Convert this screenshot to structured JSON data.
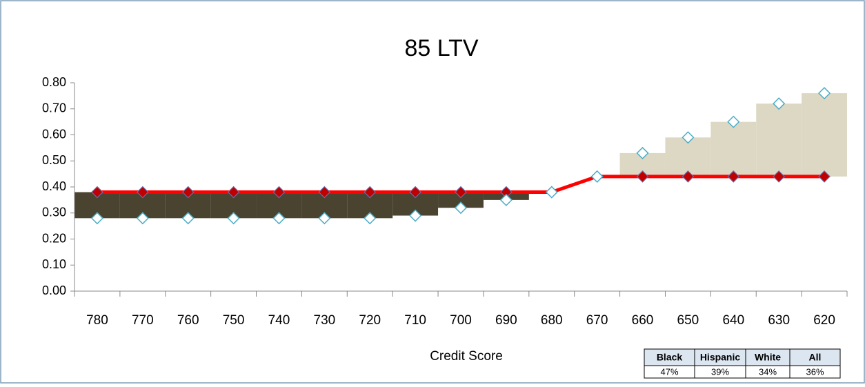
{
  "chart_data": {
    "type": "line",
    "title": "85 LTV",
    "x_label": "Credit Score",
    "categories": [
      "780",
      "770",
      "760",
      "750",
      "740",
      "730",
      "720",
      "710",
      "700",
      "690",
      "680",
      "670",
      "660",
      "650",
      "640",
      "630",
      "620"
    ],
    "series": [
      {
        "color": "#ff0000",
        "marker_color": "#c00000",
        "values": [
          0.38,
          0.38,
          0.38,
          0.38,
          0.38,
          0.38,
          0.38,
          0.38,
          0.38,
          0.38,
          0.38,
          0.44,
          0.44,
          0.44,
          0.44,
          0.44,
          0.44
        ]
      },
      {
        "color": "#4bacc6",
        "values": [
          0.28,
          0.28,
          0.28,
          0.28,
          0.28,
          0.28,
          0.28,
          0.29,
          0.32,
          0.35,
          0.38,
          0.44,
          0.53,
          0.59,
          0.65,
          0.72,
          0.76
        ]
      }
    ],
    "shade_colors": [
      "#4a4330",
      "#ddd8c4"
    ],
    "ylim": [
      0,
      0.8
    ],
    "yticks": [
      {
        "value": 0,
        "label": "0.00"
      },
      {
        "value": 0.1,
        "label": "0.10"
      },
      {
        "value": 0.2,
        "label": "0.20"
      },
      {
        "value": 0.3,
        "label": "0.30"
      },
      {
        "value": 0.4,
        "label": "0.40"
      },
      {
        "value": 0.5,
        "label": "0.50"
      },
      {
        "value": 0.6,
        "label": "0.60"
      },
      {
        "value": 0.7,
        "label": "0.70"
      },
      {
        "value": 0.8,
        "label": "0.80"
      }
    ]
  },
  "table": {
    "headers": [
      "Black",
      "Hispanic",
      "White",
      "All"
    ],
    "values": [
      "47%",
      "39%",
      "34%",
      "36%"
    ]
  }
}
